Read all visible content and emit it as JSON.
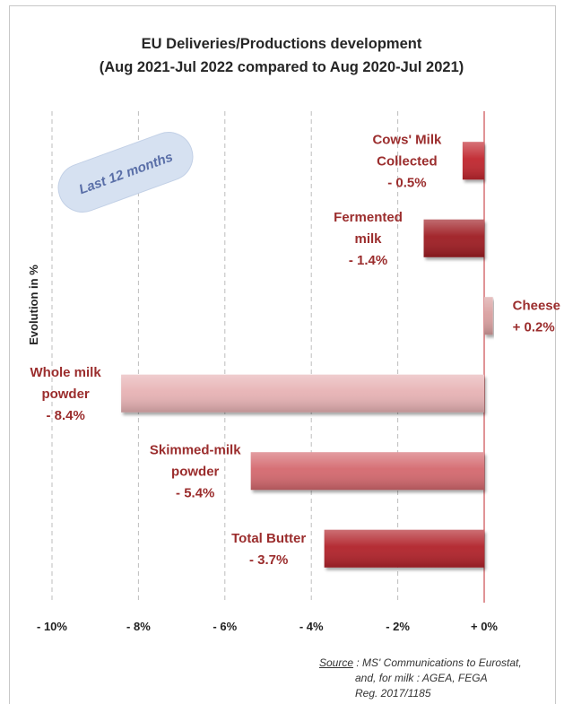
{
  "chart_data": {
    "type": "bar",
    "orientation": "horizontal",
    "title": "EU Deliveries/Productions development",
    "subtitle": "(Aug 2021-Jul 2022 compared to Aug 2020-Jul 2021)",
    "ylabel": "Evolution in %",
    "badge": "Last 12 months",
    "xlim": [
      -10,
      0
    ],
    "xticks": [
      "- 10%",
      "- 8%",
      "- 6%",
      "- 4%",
      "- 2%",
      "+ 0%"
    ],
    "xtick_values": [
      -10,
      -8,
      -6,
      -4,
      -2,
      0
    ],
    "grid": true,
    "categories": [
      {
        "name_lines": [
          "Cows' Milk",
          "Collected"
        ],
        "value_label": "- 0.5%",
        "value": -0.5,
        "color": "#c0272d"
      },
      {
        "name_lines": [
          "Fermented",
          "milk"
        ],
        "value_label": "- 1.4%",
        "value": -1.4,
        "color": "#9e1c24"
      },
      {
        "name_lines": [
          "Cheese"
        ],
        "value_label": "+ 0.2%",
        "value": 0.2,
        "color": "#d9a0a0"
      },
      {
        "name_lines": [
          "Whole milk",
          "powder"
        ],
        "value_label": "- 8.4%",
        "value": -8.4,
        "color": "#e7b2b4"
      },
      {
        "name_lines": [
          "Skimmed-milk",
          "powder"
        ],
        "value_label": "- 5.4%",
        "value": -5.4,
        "color": "#d4686e"
      },
      {
        "name_lines": [
          "Total Butter"
        ],
        "value_label": "- 3.7%",
        "value": -3.7,
        "color": "#b1222a"
      }
    ],
    "source": {
      "label": "Source",
      "lines": [
        " : MS' Communications to Eurostat,",
        "and, for milk : AGEA, FEGA",
        "Reg. 2017/1185"
      ]
    }
  }
}
